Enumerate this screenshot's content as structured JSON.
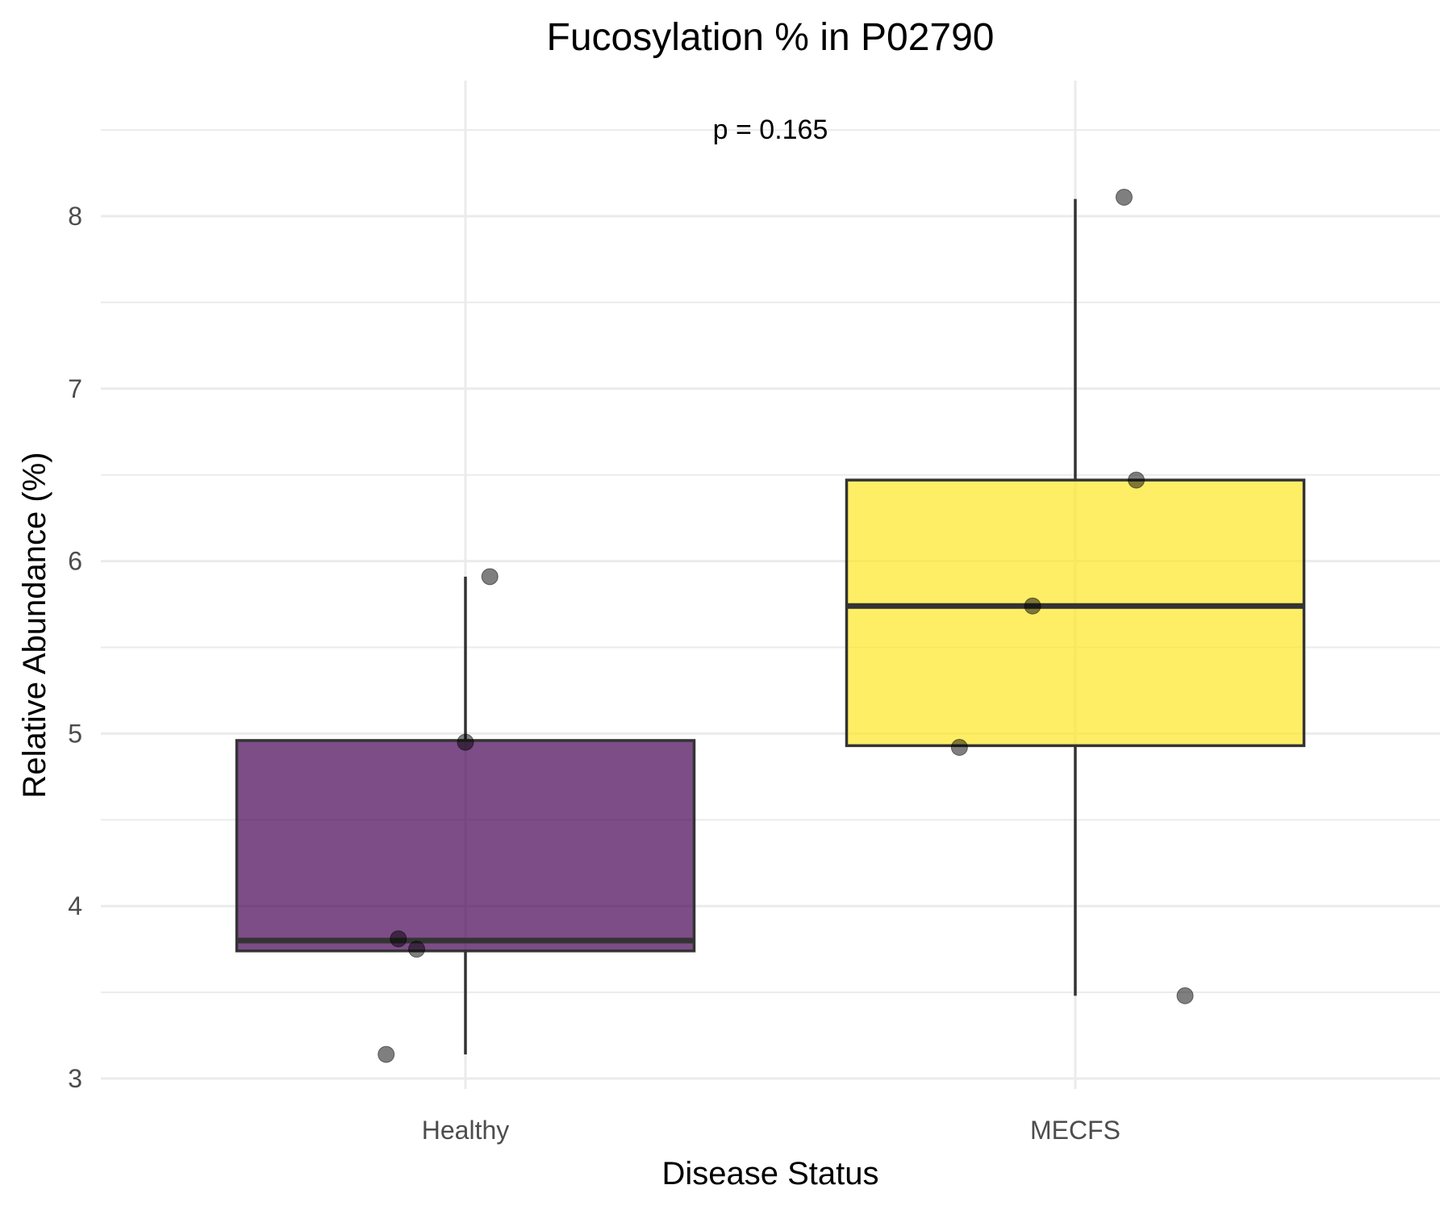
{
  "chart_data": {
    "type": "box",
    "title": "Fucosylation % in P02790",
    "xlabel": "Disease Status",
    "ylabel": "Relative Abundance (%)",
    "annotation": "p = 0.165",
    "categories": [
      "Healthy",
      "MECFS"
    ],
    "ylim": [
      2.95,
      8.85
    ],
    "yticks": [
      3,
      4,
      5,
      6,
      7,
      8
    ],
    "grid": true,
    "legend": "none",
    "boxes": [
      {
        "category": "Healthy",
        "color": "#440154",
        "whisker_low": 3.14,
        "q1": 3.74,
        "median": 3.8,
        "q3": 4.96,
        "whisker_high": 5.91,
        "points": [
          {
            "jitter": -0.13,
            "y": 3.14
          },
          {
            "jitter": -0.11,
            "y": 3.81
          },
          {
            "jitter": -0.08,
            "y": 3.75
          },
          {
            "jitter": 0.0,
            "y": 4.95
          },
          {
            "jitter": 0.04,
            "y": 5.91
          }
        ]
      },
      {
        "category": "MECFS",
        "color": "#FDE725",
        "whisker_low": 3.48,
        "q1": 4.93,
        "median": 5.74,
        "q3": 6.47,
        "whisker_high": 8.1,
        "points": [
          {
            "jitter": -0.19,
            "y": 4.92
          },
          {
            "jitter": -0.07,
            "y": 5.74
          },
          {
            "jitter": 0.08,
            "y": 8.11
          },
          {
            "jitter": 0.1,
            "y": 6.47
          },
          {
            "jitter": 0.18,
            "y": 3.48
          }
        ]
      }
    ]
  }
}
